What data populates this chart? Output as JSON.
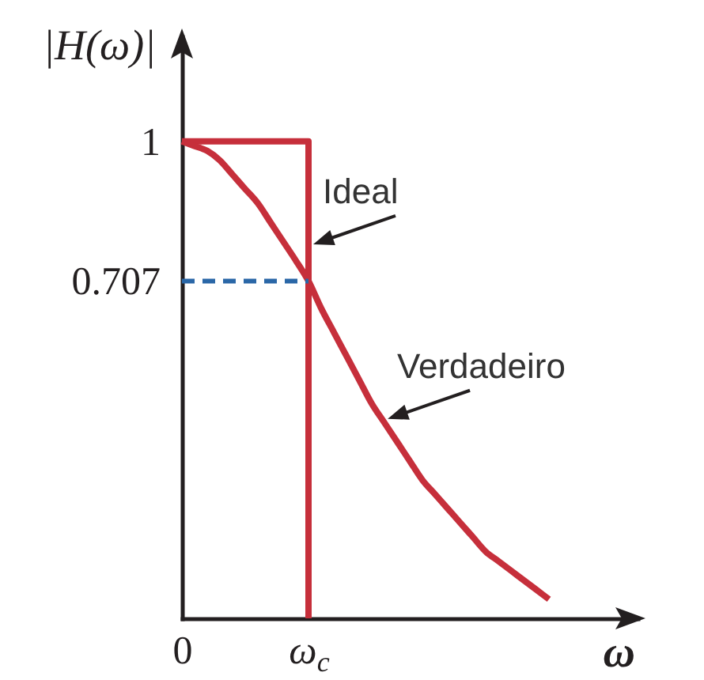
{
  "chart_data": {
    "type": "line",
    "xlabel": "ω",
    "ylabel": "|H(ω)|",
    "categories": [
      "0",
      null,
      null,
      null,
      null,
      null,
      null,
      null,
      null,
      null,
      "ω$_{c}$",
      null,
      null,
      null,
      null,
      null,
      null,
      null,
      null,
      null,
      null,
      null,
      null,
      null,
      null,
      null,
      null,
      null,
      null,
      null,
      null,
      null,
      null,
      null,
      null,
      null,
      null
    ],
    "ylim": [
      0,
      1.22
    ],
    "yticks": [
      0.707,
      1
    ],
    "series": [
      {
        "name": "Ideal",
        "type": "step",
        "color": "#c62f3b",
        "values": [
          1,
          1,
          1,
          1,
          1,
          1,
          1,
          1,
          1,
          1,
          0,
          null,
          null,
          null,
          null,
          null,
          null,
          null,
          null,
          null,
          null,
          null,
          null,
          null,
          null,
          null,
          null,
          null,
          null,
          null,
          null,
          null,
          null,
          null,
          null,
          null,
          null
        ]
      },
      {
        "name": "Verdadeiro",
        "color": "#c62f3b",
        "values": [
          1,
          0.99,
          0.98,
          0.96,
          0.93,
          0.9,
          0.87,
          0.83,
          0.79,
          0.75,
          0.707,
          0.65,
          0.6,
          0.55,
          0.5,
          0.45,
          0.41,
          0.37,
          0.33,
          0.29,
          0.26,
          0.23,
          0.2,
          0.17,
          0.14,
          0.12,
          0.1,
          0.08,
          0.06,
          0.04,
          null,
          null,
          null,
          null,
          null,
          null,
          null
        ]
      },
      {
        "color": "#2a67a7",
        "line_style": "dashed",
        "values": [
          0.707,
          0.707,
          0.707,
          0.707,
          0.707,
          0.707,
          0.707,
          0.707,
          0.707,
          0.707,
          0.707,
          null,
          null,
          null,
          null,
          null,
          null,
          null,
          null,
          null,
          null,
          null,
          null,
          null,
          null,
          null,
          null,
          null,
          null,
          null,
          null,
          null,
          null,
          null,
          null,
          null,
          null
        ]
      }
    ]
  }
}
